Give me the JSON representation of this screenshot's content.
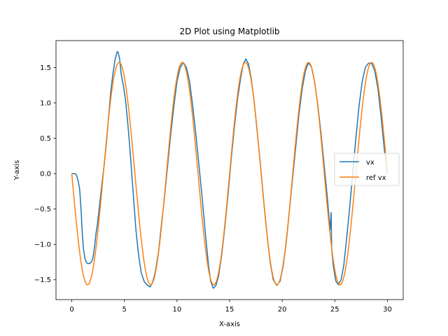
{
  "chart_data": {
    "type": "line",
    "title": "2D Plot using Matplotlib",
    "xlabel": "X-axis",
    "ylabel": "Y-axis",
    "xlim": [
      -1.5,
      31.5
    ],
    "ylim": [
      -1.78,
      1.88
    ],
    "x_ticks": [
      0,
      5,
      10,
      15,
      20,
      25,
      30
    ],
    "x_tick_labels": [
      "0",
      "5",
      "10",
      "15",
      "20",
      "25",
      "30"
    ],
    "y_ticks": [
      -1.5,
      -1.0,
      -0.5,
      0.0,
      0.5,
      1.0,
      1.5
    ],
    "y_tick_labels": [
      "−1.5",
      "−1.0",
      "−0.5",
      "0.0",
      "0.5",
      "1.0",
      "1.5"
    ],
    "grid": false,
    "legend_position": "center-right",
    "series": [
      {
        "name": "vx",
        "color": "#1f77b4",
        "points": [
          [
            0.0,
            0.0
          ],
          [
            0.3,
            0.0
          ],
          [
            0.45,
            -0.02
          ],
          [
            0.6,
            -0.1
          ],
          [
            0.75,
            -0.22
          ],
          [
            0.9,
            -0.55
          ],
          [
            1.0,
            -0.85
          ],
          [
            1.1,
            -1.05
          ],
          [
            1.25,
            -1.2
          ],
          [
            1.4,
            -1.26
          ],
          [
            1.55,
            -1.27
          ],
          [
            1.7,
            -1.27
          ],
          [
            1.85,
            -1.25
          ],
          [
            2.0,
            -1.2
          ],
          [
            2.15,
            -1.05
          ],
          [
            2.3,
            -0.85
          ],
          [
            2.45,
            -0.7
          ],
          [
            2.6,
            -0.5
          ],
          [
            2.75,
            -0.3
          ],
          [
            2.9,
            -0.1
          ],
          [
            3.1,
            0.15
          ],
          [
            3.3,
            0.45
          ],
          [
            3.5,
            0.8
          ],
          [
            3.7,
            1.15
          ],
          [
            3.9,
            1.4
          ],
          [
            4.1,
            1.6
          ],
          [
            4.3,
            1.72
          ],
          [
            4.4,
            1.72
          ],
          [
            4.55,
            1.62
          ],
          [
            4.7,
            1.4
          ],
          [
            4.9,
            1.25
          ],
          [
            5.1,
            1.05
          ],
          [
            5.3,
            0.75
          ],
          [
            5.5,
            0.4
          ],
          [
            5.7,
            0.0
          ],
          [
            5.9,
            -0.4
          ],
          [
            6.1,
            -0.8
          ],
          [
            6.35,
            -1.15
          ],
          [
            6.6,
            -1.4
          ],
          [
            6.9,
            -1.53
          ],
          [
            7.2,
            -1.58
          ],
          [
            7.45,
            -1.6
          ],
          [
            7.7,
            -1.53
          ],
          [
            7.95,
            -1.38
          ],
          [
            8.25,
            -1.1
          ],
          [
            8.5,
            -0.75
          ],
          [
            8.8,
            -0.35
          ],
          [
            9.1,
            0.1
          ],
          [
            9.4,
            0.55
          ],
          [
            9.7,
            0.95
          ],
          [
            10.0,
            1.3
          ],
          [
            10.3,
            1.5
          ],
          [
            10.6,
            1.57
          ],
          [
            10.9,
            1.5
          ],
          [
            11.2,
            1.3
          ],
          [
            11.5,
            0.95
          ],
          [
            11.8,
            0.55
          ],
          [
            12.1,
            0.1
          ],
          [
            12.4,
            -0.35
          ],
          [
            12.7,
            -0.85
          ],
          [
            13.0,
            -1.3
          ],
          [
            13.2,
            -1.52
          ],
          [
            13.45,
            -1.62
          ],
          [
            13.7,
            -1.58
          ],
          [
            13.95,
            -1.45
          ],
          [
            14.25,
            -1.15
          ],
          [
            14.55,
            -0.75
          ],
          [
            14.85,
            -0.3
          ],
          [
            15.15,
            0.2
          ],
          [
            15.45,
            0.65
          ],
          [
            15.75,
            1.05
          ],
          [
            16.05,
            1.35
          ],
          [
            16.3,
            1.55
          ],
          [
            16.55,
            1.62
          ],
          [
            16.8,
            1.55
          ],
          [
            17.05,
            1.35
          ],
          [
            17.35,
            1.0
          ],
          [
            17.65,
            0.55
          ],
          [
            17.95,
            0.1
          ],
          [
            18.25,
            -0.4
          ],
          [
            18.55,
            -0.85
          ],
          [
            18.85,
            -1.25
          ],
          [
            19.15,
            -1.5
          ],
          [
            19.5,
            -1.58
          ],
          [
            19.8,
            -1.52
          ],
          [
            20.1,
            -1.3
          ],
          [
            20.4,
            -0.95
          ],
          [
            20.7,
            -0.5
          ],
          [
            21.0,
            -0.05
          ],
          [
            21.3,
            0.4
          ],
          [
            21.6,
            0.85
          ],
          [
            21.9,
            1.2
          ],
          [
            22.2,
            1.45
          ],
          [
            22.5,
            1.57
          ],
          [
            22.8,
            1.5
          ],
          [
            23.1,
            1.28
          ],
          [
            23.4,
            0.95
          ],
          [
            23.7,
            0.55
          ],
          [
            24.0,
            0.1
          ],
          [
            24.3,
            -0.35
          ],
          [
            24.55,
            -0.8
          ],
          [
            24.65,
            -0.55
          ],
          [
            24.7,
            -1.05
          ],
          [
            24.85,
            -1.3
          ],
          [
            25.1,
            -1.52
          ],
          [
            25.35,
            -1.57
          ],
          [
            25.6,
            -1.5
          ],
          [
            25.85,
            -1.3
          ],
          [
            26.1,
            -0.95
          ],
          [
            26.4,
            -0.5
          ],
          [
            26.7,
            0.0
          ],
          [
            27.0,
            0.5
          ],
          [
            27.3,
            0.95
          ],
          [
            27.6,
            1.3
          ],
          [
            27.9,
            1.5
          ],
          [
            28.2,
            1.56
          ],
          [
            28.5,
            1.56
          ],
          [
            28.8,
            1.45
          ],
          [
            29.1,
            1.2
          ],
          [
            29.4,
            0.8
          ],
          [
            29.7,
            0.35
          ],
          [
            30.0,
            0.0
          ]
        ]
      },
      {
        "name": "ref vx",
        "color": "#ff7f0e",
        "function": "-1.571*sin(2*pi*t/6)",
        "x_range": [
          0,
          30
        ],
        "samples": 600
      }
    ]
  }
}
